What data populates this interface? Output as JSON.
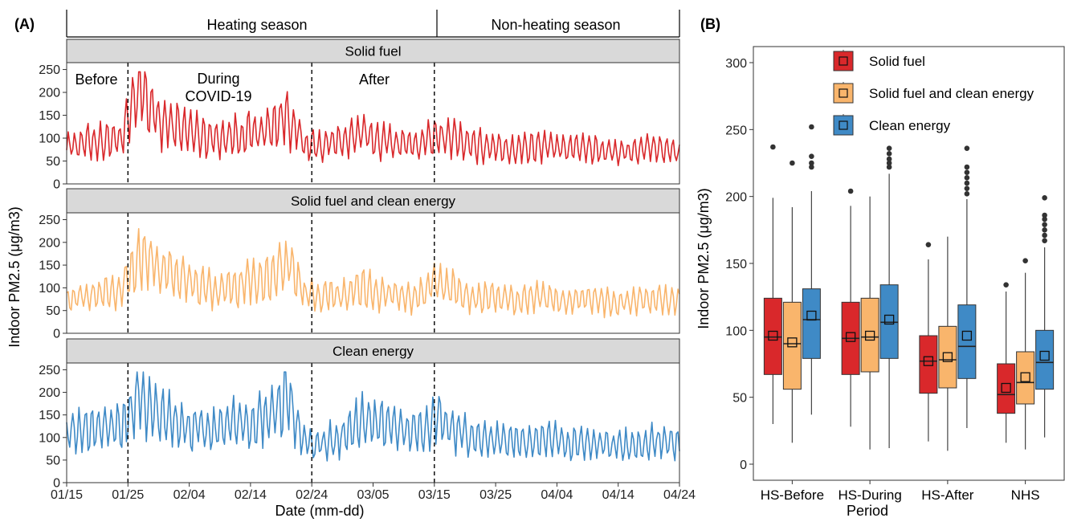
{
  "chart_data": [
    {
      "type": "line",
      "panel_label": "(A)",
      "season_labels": [
        "Heating season",
        "Non-heating season"
      ],
      "facets": [
        "Solid fuel",
        "Solid fuel and clean energy",
        "Clean energy"
      ],
      "period_annotations": [
        "Before",
        "During COVID-19",
        "After"
      ],
      "period_annotations_lines": {
        "before": "Before",
        "during_1": "During",
        "during_2": "COVID-19",
        "after": "After"
      },
      "xlabel": "Date (mm-dd)",
      "ylabel": "Indoor PM2.5 (μg/m3)",
      "x_ticks": [
        "01/15",
        "01/25",
        "02/04",
        "02/14",
        "02/24",
        "03/05",
        "03/15",
        "03/25",
        "04/04",
        "04/14",
        "04/24"
      ],
      "y_ticks": [
        "0",
        "50",
        "100",
        "150",
        "200",
        "250"
      ],
      "ylim": [
        0,
        265
      ],
      "x_range_days": [
        0,
        100
      ],
      "vlines_days": [
        10,
        40,
        60
      ],
      "series": [
        {
          "name": "Solid fuel",
          "color": "#d9282b",
          "values_from_0115_every_3_days": [
            85,
            90,
            95,
            100,
            210,
            135,
            125,
            110,
            100,
            105,
            110,
            120,
            150,
            80,
            85,
            95,
            110,
            95,
            90,
            85,
            100,
            105,
            80,
            85,
            75,
            80,
            85,
            75,
            80,
            75,
            70,
            75,
            80,
            70,
            65,
            70,
            60
          ]
        },
        {
          "name": "Solid fuel and clean energy",
          "color": "#f9b56c",
          "values_from_0115_every_3_days": [
            75,
            80,
            90,
            100,
            170,
            140,
            125,
            110,
            95,
            100,
            110,
            120,
            160,
            80,
            85,
            80,
            100,
            90,
            85,
            80,
            110,
            100,
            75,
            80,
            70,
            75,
            80,
            70,
            75,
            70,
            65,
            70,
            75,
            70,
            60,
            65,
            60
          ]
        },
        {
          "name": "Clean energy",
          "color": "#3f8ac6",
          "values_from_0115_every_3_days": [
            110,
            115,
            125,
            120,
            190,
            150,
            130,
            125,
            115,
            130,
            135,
            150,
            190,
            85,
            90,
            100,
            140,
            130,
            120,
            110,
            145,
            120,
            95,
            100,
            90,
            95,
            100,
            85,
            90,
            85,
            80,
            85,
            90,
            85,
            75,
            80,
            70
          ]
        }
      ]
    },
    {
      "type": "box",
      "panel_label": "(B)",
      "xlabel": "Period",
      "ylabel": "Indoor PM2.5 (μg/m3)",
      "categories": [
        "HS-Before",
        "HS-During",
        "HS-After",
        "NHS"
      ],
      "y_ticks": [
        "0",
        "50",
        "100",
        "150",
        "200",
        "250",
        "300"
      ],
      "ylim": [
        -12,
        312
      ],
      "series": [
        {
          "name": "Solid fuel",
          "color": "#d9282b",
          "boxes": [
            {
              "low": 30,
              "q1": 67,
              "median": 95,
              "q3": 124,
              "high": 199,
              "mean": 96,
              "outliers": [
                237
              ]
            },
            {
              "low": 28,
              "q1": 67,
              "median": 94,
              "q3": 121,
              "high": 193,
              "mean": 95,
              "outliers": [
                204
              ]
            },
            {
              "low": 17,
              "q1": 53,
              "median": 77,
              "q3": 96,
              "high": 153,
              "mean": 77,
              "outliers": [
                164
              ]
            },
            {
              "low": 16,
              "q1": 38,
              "median": 52,
              "q3": 75,
              "high": 129,
              "mean": 57,
              "outliers": [
                134
              ]
            }
          ]
        },
        {
          "name": "Solid fuel and clean energy",
          "color": "#f9b56c",
          "boxes": [
            {
              "low": 16,
              "q1": 56,
              "median": 90,
              "q3": 121,
              "high": 192,
              "mean": 91,
              "outliers": [
                225
              ]
            },
            {
              "low": 11,
              "q1": 69,
              "median": 95,
              "q3": 124,
              "high": 200,
              "mean": 96,
              "outliers": []
            },
            {
              "low": 10,
              "q1": 57,
              "median": 78,
              "q3": 103,
              "high": 170,
              "mean": 80,
              "outliers": []
            },
            {
              "low": 11,
              "q1": 45,
              "median": 61,
              "q3": 84,
              "high": 143,
              "mean": 65,
              "outliers": [
                152
              ]
            }
          ]
        },
        {
          "name": "Clean energy",
          "color": "#3f8ac6",
          "boxes": [
            {
              "low": 37,
              "q1": 79,
              "median": 108,
              "q3": 131,
              "high": 204,
              "mean": 111,
              "outliers": [
                222,
                225,
                230,
                252
              ]
            },
            {
              "low": 12,
              "q1": 79,
              "median": 106,
              "q3": 134,
              "high": 217,
              "mean": 108,
              "outliers": [
                222,
                225,
                228,
                232,
                236
              ]
            },
            {
              "low": 27,
              "q1": 64,
              "median": 88,
              "q3": 119,
              "high": 198,
              "mean": 96,
              "outliers": [
                202,
                206,
                210,
                214,
                218,
                222,
                236
              ]
            },
            {
              "low": 20,
              "q1": 56,
              "median": 76,
              "q3": 100,
              "high": 162,
              "mean": 81,
              "outliers": [
                167,
                171,
                175,
                179,
                183,
                186,
                199
              ]
            }
          ]
        }
      ],
      "legend_placement": "top-right"
    }
  ]
}
